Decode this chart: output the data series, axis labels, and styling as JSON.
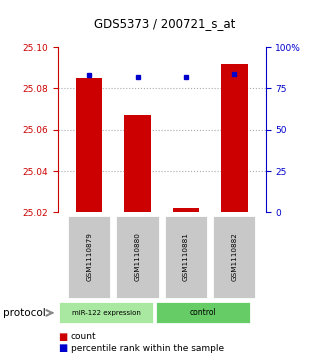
{
  "title": "GDS5373 / 200721_s_at",
  "samples": [
    "GSM1110879",
    "GSM1110880",
    "GSM1110881",
    "GSM1110882"
  ],
  "red_values": [
    25.085,
    25.067,
    25.022,
    25.092
  ],
  "blue_values": [
    83,
    82,
    82,
    84
  ],
  "ylim_left": [
    25.02,
    25.1
  ],
  "ylim_right": [
    0,
    100
  ],
  "yticks_left": [
    25.02,
    25.04,
    25.06,
    25.08,
    25.1
  ],
  "yticks_right": [
    0,
    25,
    50,
    75,
    100
  ],
  "ytick_labels_right": [
    "0",
    "25",
    "50",
    "75",
    "100%"
  ],
  "red_color": "#cc0000",
  "blue_color": "#0000cc",
  "bg_sample_box": "#c8c8c8",
  "green_light": "#a8e8a0",
  "green_dark": "#66cc66",
  "dotted_color": "#aaaaaa",
  "legend_count": "count",
  "legend_pct": "percentile rank within the sample"
}
